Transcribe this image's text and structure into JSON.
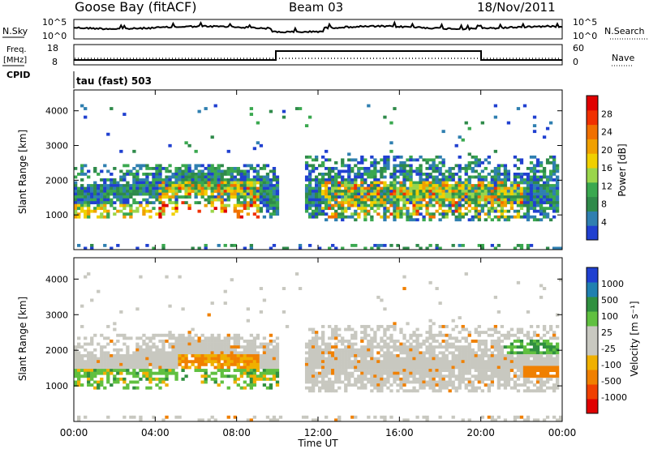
{
  "header": {
    "station": "Goose Bay (fitACF)",
    "beam": "Beam 03",
    "date": "18/Nov/2011"
  },
  "summary": {
    "nsky_label": "N.Sky",
    "nsky_ticks": [
      "10^5",
      "10^0"
    ],
    "nsearch_label": "N.Search",
    "freq_label": "Freq.",
    "freq_unit": "[MHz]",
    "freq_ticks": [
      "18",
      "8"
    ],
    "nave_label": "Nave",
    "nave_ticks": [
      "60",
      "0"
    ],
    "cpid_label": "CPID",
    "cpid_text": "tau (fast) 503"
  },
  "colors": {
    "power": [
      "#2040d0",
      "#2f7fb0",
      "#2f8a4a",
      "#3aa84f",
      "#9ad64b",
      "#f0d000",
      "#f0a000",
      "#f07000",
      "#f03000",
      "#e00000"
    ],
    "velocity": [
      "#e00000",
      "#f04000",
      "#f08000",
      "#f0b000",
      "#c8c8c0",
      "#c8c8c0",
      "#60c040",
      "#309040",
      "#2080b0",
      "#2040d0"
    ]
  },
  "chart_data": [
    {
      "type": "heatmap",
      "name": "power",
      "xlabel": "",
      "ylabel": "Slant Range [km]",
      "yticks": [
        "1000",
        "2000",
        "3000",
        "4000"
      ],
      "ylim": [
        0,
        4600
      ],
      "colorbar_label": "Power [dB]",
      "colorbar_ticks": [
        "4",
        "8",
        "12",
        "16",
        "20",
        "24",
        "28"
      ],
      "colorbar_range": [
        0,
        32
      ]
    },
    {
      "type": "heatmap",
      "name": "velocity",
      "xlabel": "Time UT",
      "ylabel": "Slant Range [km]",
      "yticks": [
        "1000",
        "2000",
        "3000",
        "4000"
      ],
      "ylim": [
        0,
        4600
      ],
      "colorbar_label": "Velocity [m s⁻¹]",
      "colorbar_ticks": [
        "-1000",
        "-500",
        "-100",
        "-25",
        "25",
        "100",
        "500",
        "1000"
      ],
      "xticks": [
        "00:00",
        "04:00",
        "08:00",
        "12:00",
        "16:00",
        "20:00",
        "00:00"
      ],
      "xlim_hours": [
        0,
        24
      ]
    }
  ]
}
